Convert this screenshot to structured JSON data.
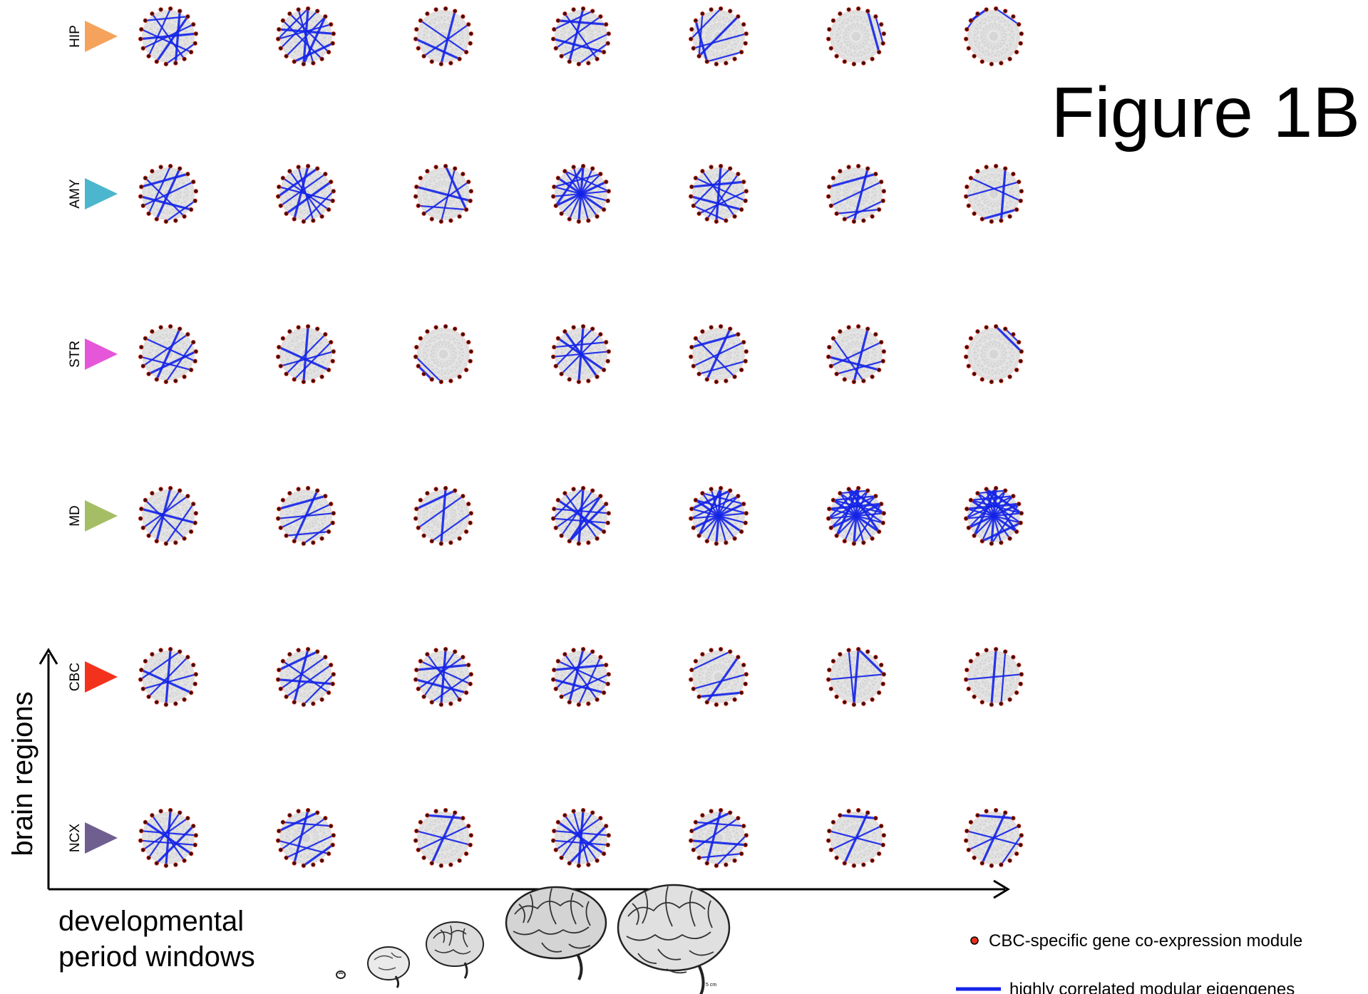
{
  "title": "Figure 1B",
  "axes": {
    "y_label": "brain regions",
    "x_label_line1": "developmental",
    "x_label_line2": "period windows"
  },
  "regions": [
    {
      "label": "HIP",
      "color": "#f5a35c"
    },
    {
      "label": "AMY",
      "color": "#4bb6cd"
    },
    {
      "label": "STR",
      "color": "#e656d9"
    },
    {
      "label": "MD",
      "color": "#a5be66"
    },
    {
      "label": "CBC",
      "color": "#f3321d"
    },
    {
      "label": "NCX",
      "color": "#6f5f90"
    }
  ],
  "window_count": 7,
  "node_count": 18,
  "network_edges": [
    [
      [
        2,
        10
      ],
      [
        3,
        12
      ],
      [
        5,
        9
      ],
      [
        1,
        8
      ],
      [
        6,
        14
      ],
      [
        0,
        11
      ],
      [
        4,
        13
      ],
      [
        2,
        15
      ],
      [
        7,
        16
      ]
    ],
    [
      [
        0,
        9
      ],
      [
        2,
        11
      ],
      [
        3,
        13
      ],
      [
        5,
        10
      ],
      [
        1,
        12
      ],
      [
        7,
        15
      ],
      [
        4,
        14
      ],
      [
        6,
        16
      ],
      [
        8,
        17
      ],
      [
        2,
        9
      ],
      [
        0,
        13
      ]
    ],
    [
      [
        1,
        9
      ],
      [
        3,
        11
      ],
      [
        6,
        15
      ],
      [
        7,
        13
      ]
    ],
    [
      [
        0,
        10
      ],
      [
        2,
        12
      ],
      [
        4,
        11
      ],
      [
        6,
        13
      ],
      [
        1,
        14
      ],
      [
        7,
        16
      ],
      [
        3,
        15
      ],
      [
        5,
        9
      ]
    ],
    [
      [
        2,
        11
      ],
      [
        4,
        12
      ],
      [
        6,
        10
      ],
      [
        10,
        15
      ],
      [
        11,
        16
      ],
      [
        0,
        13
      ]
    ],
    [
      [
        1,
        6
      ],
      [
        2,
        5
      ]
    ],
    [
      [
        15,
        17
      ],
      [
        0,
        3
      ],
      [
        14,
        16
      ]
    ],
    [
      [
        1,
        10
      ],
      [
        3,
        12
      ],
      [
        5,
        9
      ],
      [
        2,
        14
      ],
      [
        7,
        15
      ],
      [
        0,
        11
      ],
      [
        6,
        13
      ]
    ],
    [
      [
        0,
        10
      ],
      [
        2,
        12
      ],
      [
        4,
        9
      ],
      [
        1,
        13
      ],
      [
        5,
        14
      ],
      [
        7,
        16
      ],
      [
        3,
        11
      ],
      [
        6,
        15
      ],
      [
        8,
        17
      ]
    ],
    [
      [
        0,
        6
      ],
      [
        1,
        9
      ],
      [
        3,
        11
      ],
      [
        5,
        14
      ],
      [
        6,
        12
      ]
    ],
    [
      [
        0,
        9
      ],
      [
        1,
        10
      ],
      [
        2,
        11
      ],
      [
        3,
        12
      ],
      [
        4,
        13
      ],
      [
        5,
        14
      ],
      [
        6,
        15
      ],
      [
        7,
        16
      ],
      [
        8,
        17
      ],
      [
        0,
        12
      ],
      [
        2,
        14
      ],
      [
        4,
        16
      ]
    ],
    [
      [
        0,
        9
      ],
      [
        1,
        12
      ],
      [
        2,
        10
      ],
      [
        3,
        14
      ],
      [
        4,
        11
      ],
      [
        5,
        15
      ],
      [
        6,
        13
      ],
      [
        7,
        16
      ],
      [
        8,
        12
      ]
    ],
    [
      [
        1,
        9
      ],
      [
        3,
        12
      ],
      [
        5,
        10
      ],
      [
        2,
        14
      ],
      [
        6,
        11
      ]
    ],
    [
      [
        1,
        8
      ],
      [
        3,
        13
      ],
      [
        5,
        15
      ],
      [
        6,
        10
      ]
    ],
    [
      [
        1,
        10
      ],
      [
        2,
        12
      ],
      [
        3,
        9
      ],
      [
        4,
        11
      ],
      [
        6,
        13
      ],
      [
        5,
        15
      ]
    ],
    [
      [
        0,
        9
      ],
      [
        2,
        11
      ],
      [
        4,
        12
      ],
      [
        6,
        14
      ],
      [
        3,
        10
      ]
    ],
    [
      [
        10,
        12
      ],
      [
        9,
        13
      ]
    ],
    [
      [
        0,
        9
      ],
      [
        2,
        11
      ],
      [
        4,
        13
      ],
      [
        6,
        15
      ],
      [
        1,
        12
      ],
      [
        3,
        14
      ],
      [
        7,
        16
      ]
    ],
    [
      [
        1,
        10
      ],
      [
        3,
        12
      ],
      [
        5,
        11
      ],
      [
        2,
        14
      ],
      [
        7,
        15
      ]
    ],
    [
      [
        1,
        9
      ],
      [
        3,
        12
      ],
      [
        5,
        11
      ],
      [
        6,
        13
      ],
      [
        8,
        15
      ]
    ],
    [
      [
        0,
        4
      ],
      [
        1,
        3
      ]
    ],
    [
      [
        0,
        10
      ],
      [
        2,
        12
      ],
      [
        3,
        9
      ],
      [
        5,
        14
      ],
      [
        7,
        15
      ],
      [
        1,
        11
      ]
    ],
    [
      [
        1,
        10
      ],
      [
        3,
        12
      ],
      [
        5,
        9
      ],
      [
        2,
        14
      ],
      [
        6,
        11
      ],
      [
        4,
        13
      ]
    ],
    [
      [
        0,
        9
      ],
      [
        2,
        12
      ],
      [
        4,
        10
      ],
      [
        1,
        14
      ]
    ],
    [
      [
        0,
        9
      ],
      [
        1,
        11
      ],
      [
        2,
        12
      ],
      [
        3,
        10
      ],
      [
        4,
        14
      ],
      [
        5,
        13
      ],
      [
        6,
        15
      ],
      [
        7,
        16
      ],
      [
        0,
        13
      ],
      [
        2,
        10
      ]
    ],
    [
      [
        0,
        9
      ],
      [
        1,
        10
      ],
      [
        2,
        11
      ],
      [
        3,
        12
      ],
      [
        4,
        13
      ],
      [
        5,
        14
      ],
      [
        6,
        15
      ],
      [
        7,
        16
      ],
      [
        8,
        17
      ],
      [
        0,
        11
      ],
      [
        2,
        13
      ],
      [
        4,
        15
      ],
      [
        1,
        14
      ],
      [
        3,
        16
      ]
    ],
    [
      [
        0,
        9
      ],
      [
        1,
        10
      ],
      [
        2,
        11
      ],
      [
        3,
        12
      ],
      [
        4,
        13
      ],
      [
        5,
        14
      ],
      [
        6,
        15
      ],
      [
        7,
        16
      ],
      [
        8,
        17
      ],
      [
        0,
        11
      ],
      [
        1,
        12
      ],
      [
        2,
        13
      ],
      [
        3,
        14
      ],
      [
        4,
        15
      ],
      [
        5,
        16
      ],
      [
        6,
        17
      ],
      [
        0,
        13
      ],
      [
        2,
        15
      ],
      [
        4,
        17
      ],
      [
        1,
        16
      ],
      [
        3,
        9
      ]
    ],
    [
      [
        0,
        9
      ],
      [
        1,
        10
      ],
      [
        2,
        11
      ],
      [
        3,
        12
      ],
      [
        4,
        13
      ],
      [
        5,
        14
      ],
      [
        6,
        15
      ],
      [
        7,
        16
      ],
      [
        8,
        17
      ],
      [
        0,
        11
      ],
      [
        1,
        12
      ],
      [
        2,
        13
      ],
      [
        3,
        14
      ],
      [
        4,
        15
      ],
      [
        5,
        16
      ],
      [
        6,
        17
      ],
      [
        0,
        13
      ],
      [
        2,
        15
      ],
      [
        4,
        17
      ],
      [
        1,
        16
      ],
      [
        3,
        9
      ],
      [
        5,
        10
      ]
    ],
    [
      [
        0,
        9
      ],
      [
        2,
        11
      ],
      [
        4,
        12
      ],
      [
        6,
        14
      ],
      [
        1,
        13
      ]
    ],
    [
      [
        0,
        10
      ],
      [
        2,
        12
      ],
      [
        4,
        9
      ],
      [
        1,
        14
      ],
      [
        6,
        15
      ],
      [
        3,
        11
      ],
      [
        5,
        13
      ]
    ],
    [
      [
        0,
        9
      ],
      [
        1,
        11
      ],
      [
        2,
        12
      ],
      [
        3,
        14
      ],
      [
        4,
        10
      ],
      [
        5,
        15
      ],
      [
        6,
        13
      ],
      [
        7,
        16
      ]
    ],
    [
      [
        0,
        10
      ],
      [
        1,
        12
      ],
      [
        2,
        9
      ],
      [
        3,
        14
      ],
      [
        4,
        11
      ],
      [
        5,
        15
      ],
      [
        6,
        13
      ],
      [
        7,
        16
      ]
    ],
    [
      [
        2,
        10
      ],
      [
        4,
        12
      ],
      [
        1,
        14
      ],
      [
        6,
        11
      ]
    ],
    [
      [
        0,
        9
      ],
      [
        4,
        13
      ],
      [
        9,
        17
      ],
      [
        0,
        4
      ]
    ],
    [
      [
        0,
        9
      ],
      [
        1,
        8
      ],
      [
        4,
        13
      ]
    ],
    [
      [
        0,
        9
      ],
      [
        1,
        11
      ],
      [
        2,
        12
      ],
      [
        3,
        10
      ],
      [
        4,
        14
      ],
      [
        5,
        13
      ],
      [
        6,
        15
      ],
      [
        7,
        16
      ]
    ],
    [
      [
        0,
        10
      ],
      [
        2,
        12
      ],
      [
        4,
        11
      ],
      [
        1,
        14
      ],
      [
        6,
        13
      ],
      [
        3,
        15
      ],
      [
        5,
        9
      ]
    ],
    [
      [
        1,
        10
      ],
      [
        3,
        12
      ],
      [
        5,
        14
      ],
      [
        2,
        16
      ]
    ],
    [
      [
        0,
        9
      ],
      [
        1,
        11
      ],
      [
        2,
        12
      ],
      [
        3,
        10
      ],
      [
        4,
        14
      ],
      [
        5,
        13
      ],
      [
        6,
        15
      ],
      [
        7,
        16
      ],
      [
        8,
        17
      ]
    ],
    [
      [
        0,
        10
      ],
      [
        2,
        12
      ],
      [
        4,
        9
      ],
      [
        1,
        14
      ],
      [
        6,
        11
      ],
      [
        3,
        15
      ],
      [
        5,
        13
      ]
    ],
    [
      [
        1,
        10
      ],
      [
        3,
        12
      ],
      [
        5,
        14
      ],
      [
        2,
        16
      ]
    ],
    [
      [
        1,
        10
      ],
      [
        3,
        12
      ],
      [
        5,
        14
      ],
      [
        2,
        16
      ],
      [
        4,
        8
      ]
    ]
  ],
  "legend": {
    "node_label": "CBC-specific gene co-expression module",
    "node_color": "#e8301a",
    "edge_label": "highly correlated modular eigengenes",
    "edge_color": "#1423e8"
  },
  "scale_label": "5 cm"
}
